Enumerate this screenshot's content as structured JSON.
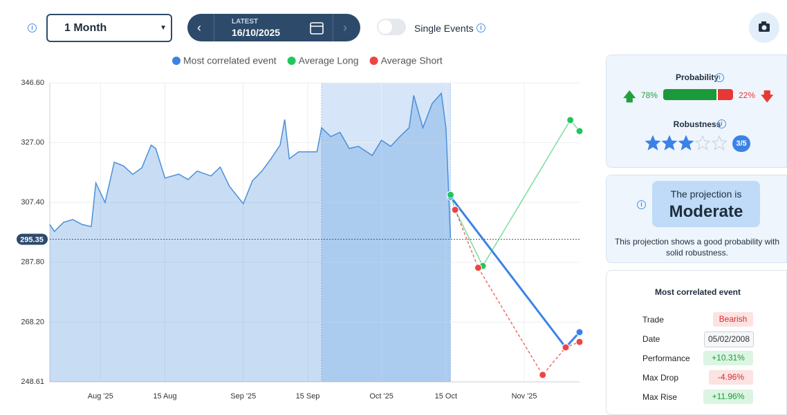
{
  "toolbar": {
    "period": "1 Month",
    "date_caption": "LATEST",
    "date": "16/10/2025",
    "toggle_label": "Single Events"
  },
  "chart_data": {
    "type": "line",
    "xlim": [
      "2025-07-21",
      "2025-11-13"
    ],
    "xticks": [
      {
        "value": "2025-08-01",
        "label": "Aug '25"
      },
      {
        "value": "2025-08-15",
        "label": "15 Aug"
      },
      {
        "value": "2025-09-01",
        "label": "Sep '25"
      },
      {
        "value": "2025-09-15",
        "label": "15 Sep"
      },
      {
        "value": "2025-10-01",
        "label": "Oct '25"
      },
      {
        "value": "2025-10-15",
        "label": "15 Oct"
      },
      {
        "value": "2025-11-01",
        "label": "Nov '25"
      }
    ],
    "ylim": [
      248.61,
      346.6
    ],
    "yticks": [
      248.61,
      {
        "value": 268.2,
        "label": "268.20"
      },
      {
        "value": 287.8,
        "label": "287.80"
      },
      {
        "value": 307.4,
        "label": "307.40"
      },
      {
        "value": 327,
        "label": "327.00"
      },
      {
        "value": 346.6,
        "label": "346.60"
      }
    ],
    "grid": true,
    "current_value": 295.35,
    "highlight": [
      "2025-09-18",
      "2025-10-16"
    ],
    "area": {
      "color": "#4a8fd9",
      "x": [
        "2025-07-21",
        "2025-07-22",
        "2025-07-24",
        "2025-07-26",
        "2025-07-28",
        "2025-07-30",
        "2025-07-31",
        "2025-08-02",
        "2025-08-04",
        "2025-08-06",
        "2025-08-08",
        "2025-08-10",
        "2025-08-12",
        "2025-08-13",
        "2025-08-15",
        "2025-08-18",
        "2025-08-20",
        "2025-08-22",
        "2025-08-25",
        "2025-08-27",
        "2025-08-29",
        "2025-09-01",
        "2025-09-03",
        "2025-09-05",
        "2025-09-07",
        "2025-09-09",
        "2025-09-10",
        "2025-09-11",
        "2025-09-13",
        "2025-09-15",
        "2025-09-17",
        "2025-09-18",
        "2025-09-20",
        "2025-09-22",
        "2025-09-24",
        "2025-09-26",
        "2025-09-29",
        "2025-10-01",
        "2025-10-03",
        "2025-10-05",
        "2025-10-07",
        "2025-10-08",
        "2025-10-10",
        "2025-10-12",
        "2025-10-14",
        "2025-10-15",
        "2025-10-16"
      ],
      "values": [
        300.2,
        297.9,
        300.9,
        301.8,
        300.2,
        299.5,
        313.8,
        307.4,
        320.6,
        319.4,
        316.6,
        318.8,
        326.2,
        325.1,
        315.4,
        316.7,
        314.9,
        317.7,
        316.1,
        319.0,
        312.7,
        307.0,
        314.5,
        317.6,
        321.7,
        326.2,
        334.6,
        321.7,
        324.0,
        324.0,
        324.0,
        331.9,
        329.0,
        330.4,
        325.1,
        325.8,
        322.8,
        327.8,
        325.8,
        329.0,
        331.9,
        342.5,
        331.9,
        339.8,
        343.2,
        331.9,
        295.7
      ]
    },
    "series": [
      {
        "name": "Most correlated event",
        "color": "#3b82e6",
        "x": [
          "2025-10-16",
          "2025-11-10",
          "2025-11-13"
        ],
        "values": [
          309.3,
          259.9,
          264.9
        ]
      },
      {
        "name": "Average Long",
        "color": "#22c55e",
        "x": [
          "2025-10-16",
          "2025-10-17",
          "2025-10-23",
          "2025-11-11",
          "2025-11-13"
        ],
        "values": [
          309.9,
          305.0,
          286.6,
          334.4,
          330.8
        ]
      },
      {
        "name": "Average Short",
        "color": "#ef4444",
        "x": [
          "2025-10-17",
          "2025-10-22",
          "2025-11-05",
          "2025-11-10",
          "2025-11-13"
        ],
        "values": [
          305.0,
          286.0,
          250.9,
          259.9,
          261.7
        ]
      }
    ]
  },
  "probability": {
    "title": "Probability",
    "up": {
      "value": 78,
      "label": "78%"
    },
    "down": {
      "value": 22,
      "label": "22%"
    }
  },
  "robustness": {
    "title": "Robustness",
    "value": 3,
    "max": 5,
    "label": "3/5"
  },
  "projection": {
    "lead": "The projection is",
    "level": "Moderate",
    "text": "This projection shows a good probability with solid robustness."
  },
  "event_table": {
    "title": "Most correlated event",
    "rows": [
      [
        "Trade",
        "Bearish"
      ],
      [
        "Date",
        "05/02/2008"
      ],
      [
        "Performance",
        "+10.31%"
      ],
      [
        "Max Drop",
        "-4.96%"
      ],
      [
        "Max Rise",
        "+11.96%"
      ]
    ]
  }
}
